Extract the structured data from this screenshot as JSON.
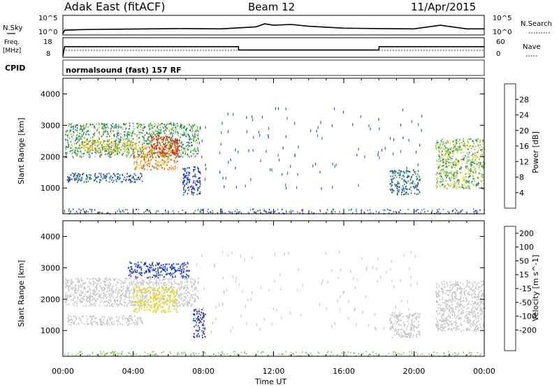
{
  "header": {
    "station": "Adak East (fitACF)",
    "beam": "Beam 12",
    "date": "11/Apr/2015"
  },
  "nsky_panel": {
    "left_label": "N.Sky",
    "left_ticks": [
      "10^5",
      "10^0"
    ],
    "right_label": "N.Search",
    "right_ticks": [
      "10^5",
      "10^0"
    ]
  },
  "freq_panel": {
    "left_label_1": "Freq.",
    "left_label_2": "[MHz]",
    "left_ticks": [
      "18",
      "8"
    ],
    "right_label": "Nave",
    "right_ticks": [
      "60",
      "0"
    ]
  },
  "cpid": {
    "label": "CPID",
    "text": "normalsound (fast) 157 RF"
  },
  "x_axis": {
    "label": "Time UT",
    "ticks": [
      "00:00",
      "04:00",
      "08:00",
      "12:00",
      "16:00",
      "20:00",
      "00:00"
    ]
  },
  "power_panel": {
    "ylabel": "Slant Range [km]",
    "yticks": [
      "1000",
      "2000",
      "3000",
      "4000"
    ],
    "colorbar_label": "Power [dB]",
    "colorbar_ticks": [
      "4",
      "8",
      "12",
      "16",
      "20",
      "24",
      "28"
    ],
    "colors": [
      "#1e1ef0",
      "#2860b8",
      "#2f8a5a",
      "#7cc85a",
      "#e8d62a",
      "#f0962a",
      "#f04a1e",
      "#e81414"
    ]
  },
  "velocity_panel": {
    "ylabel": "Slant Range [km]",
    "yticks": [
      "1000",
      "2000",
      "3000",
      "4000"
    ],
    "colorbar_label": "Velocity [m s^-1]",
    "colorbar_ticks": [
      "200",
      "100",
      "50",
      "15",
      "-15",
      "-50",
      "-100",
      "-200"
    ],
    "colors": [
      "#1e1ef0",
      "#2860b8",
      "#2f8a5a",
      "#7cc85a",
      "#c8c8c8",
      "#e8d62a",
      "#f0962a",
      "#f04a1e",
      "#e81414"
    ]
  },
  "chart_data": [
    {
      "type": "heatmap",
      "title": "Power",
      "xlabel": "Time UT",
      "ylabel": "Slant Range [km]",
      "x_range_hours": [
        0,
        24
      ],
      "ylim": [
        180,
        4500
      ],
      "colorbar": {
        "label": "Power [dB]",
        "range": [
          0,
          32
        ],
        "ticks": [
          4,
          8,
          12,
          16,
          20,
          24,
          28
        ]
      },
      "regions": [
        {
          "t0": 0.1,
          "t1": 7.7,
          "r0": 2000,
          "r1": 3100,
          "value": 12
        },
        {
          "t0": 1.0,
          "t1": 4.0,
          "r0": 2150,
          "r1": 2550,
          "value": 18
        },
        {
          "t0": 4.0,
          "t1": 6.5,
          "r0": 1600,
          "r1": 2400,
          "value": 22
        },
        {
          "t0": 5.0,
          "t1": 6.6,
          "r0": 2100,
          "r1": 2700,
          "value": 28
        },
        {
          "t0": 0.2,
          "t1": 4.5,
          "r0": 1200,
          "r1": 1500,
          "value": 6
        },
        {
          "t0": 6.8,
          "t1": 7.8,
          "r0": 800,
          "r1": 1700,
          "value": 4
        },
        {
          "t0": 18.6,
          "t1": 20.3,
          "r0": 800,
          "r1": 1600,
          "value": 8
        },
        {
          "t0": 21.2,
          "t1": 24.0,
          "r0": 1000,
          "r1": 2600,
          "value": 14
        }
      ]
    },
    {
      "type": "heatmap",
      "title": "Velocity",
      "xlabel": "Time UT",
      "ylabel": "Slant Range [km]",
      "x_range_hours": [
        0,
        24
      ],
      "ylim": [
        180,
        4500
      ],
      "colorbar": {
        "label": "Velocity [m s^-1]",
        "range": [
          -250,
          250
        ],
        "ticks": [
          200,
          100,
          50,
          15,
          -15,
          -50,
          -100,
          -200
        ]
      },
      "regions": [
        {
          "t0": 0.1,
          "t1": 7.7,
          "r0": 1800,
          "r1": 2700,
          "value": 0
        },
        {
          "t0": 3.7,
          "t1": 7.2,
          "r0": 2700,
          "r1": 3200,
          "value": 200
        },
        {
          "t0": 4.0,
          "t1": 6.5,
          "r0": 1600,
          "r1": 2400,
          "value": -30
        },
        {
          "t0": 7.4,
          "t1": 8.1,
          "r0": 800,
          "r1": 1700,
          "value": 200
        },
        {
          "t0": 0.2,
          "t1": 4.5,
          "r0": 1200,
          "r1": 1500,
          "value": 0
        },
        {
          "t0": 18.6,
          "t1": 20.3,
          "r0": 800,
          "r1": 1600,
          "value": 0
        },
        {
          "t0": 21.2,
          "t1": 24.0,
          "r0": 1000,
          "r1": 2600,
          "value": 0
        }
      ]
    },
    {
      "type": "line",
      "title": "N.Sky",
      "ylabel": "N.Sky",
      "yscale": "log",
      "ylim": [
        1,
        100000
      ],
      "x_hours": [
        0,
        0.1,
        1,
        3,
        5,
        7,
        9,
        11,
        11.5,
        12,
        13,
        14,
        16,
        18,
        20,
        21.5,
        23,
        24
      ],
      "values": [
        1,
        10,
        15,
        20,
        25,
        30,
        25,
        100,
        800,
        300,
        500,
        150,
        40,
        30,
        25,
        300,
        25,
        25
      ]
    },
    {
      "type": "line",
      "title": "Freq.",
      "ylabel": "Freq. [MHz]",
      "ylim": [
        8,
        18
      ],
      "x_hours": [
        0,
        0.1,
        10,
        10.01,
        18,
        18.01,
        24
      ],
      "values": [
        8,
        13.5,
        13.5,
        11.5,
        11.5,
        13.5,
        13.5
      ]
    },
    {
      "type": "line",
      "title": "Nave",
      "ylabel": "Nave",
      "ylim": [
        0,
        60
      ],
      "x_hours": [
        0,
        24
      ],
      "values": [
        20,
        20
      ]
    }
  ]
}
